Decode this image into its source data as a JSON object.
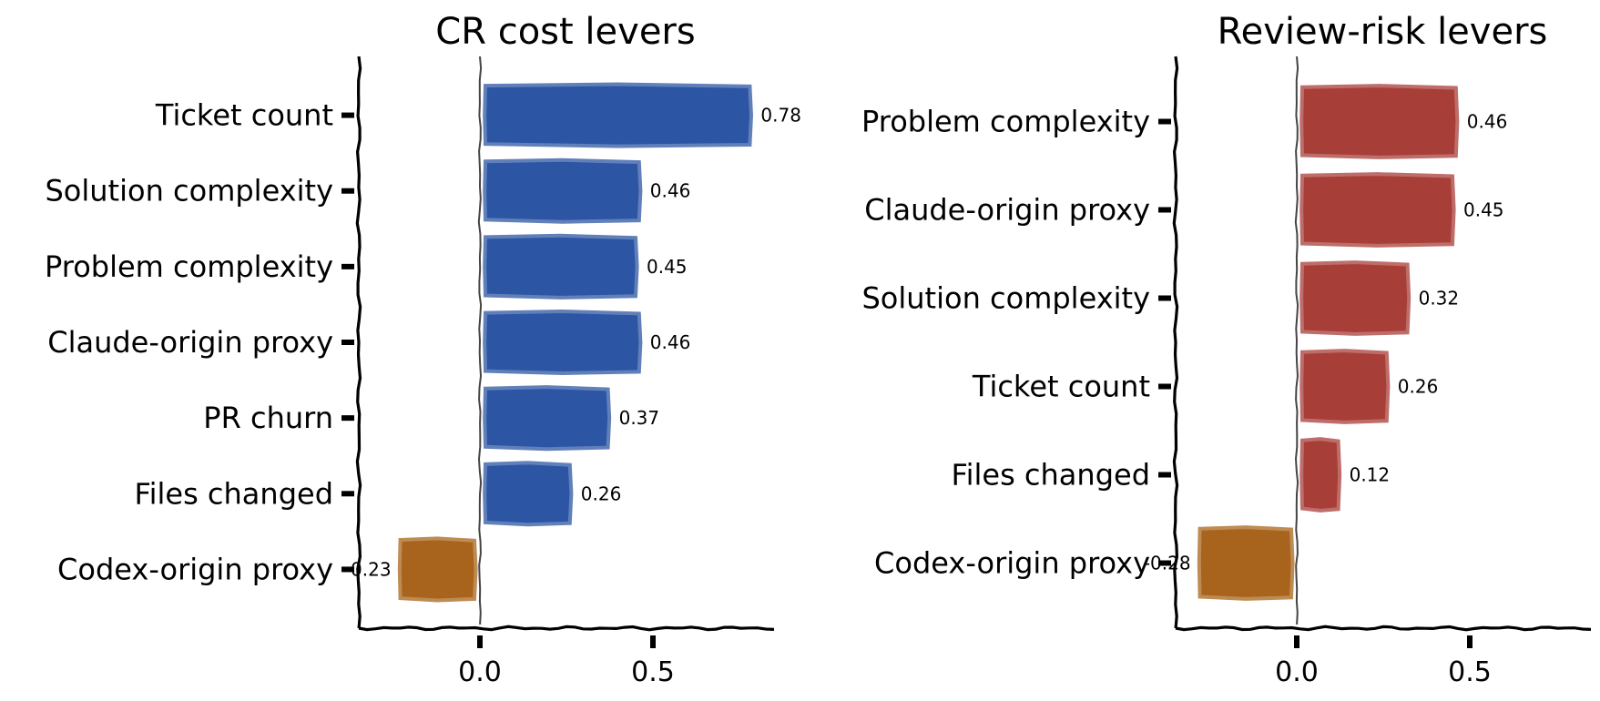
{
  "chart_data": [
    {
      "type": "bar",
      "orientation": "horizontal",
      "title": "CR cost levers",
      "categories": [
        "Ticket count",
        "Solution complexity",
        "Problem complexity",
        "Claude-origin proxy",
        "PR churn",
        "Files changed",
        "Codex-origin proxy"
      ],
      "values": [
        0.78,
        0.46,
        0.45,
        0.46,
        0.37,
        0.26,
        -0.23
      ],
      "value_labels": [
        "0.78",
        "0.46",
        "0.45",
        "0.46",
        "0.37",
        "0.26",
        "-0.23"
      ],
      "xticks": [
        0.0,
        0.5
      ],
      "xtick_labels": [
        "0.0",
        "0.5"
      ],
      "xlim": [
        -0.35,
        0.85
      ],
      "xlabel": "",
      "ylabel": "",
      "grid": false,
      "colors": {
        "positive": "#2c55a3",
        "negative": "#a8641c"
      }
    },
    {
      "type": "bar",
      "orientation": "horizontal",
      "title": "Review-risk levers",
      "categories": [
        "Problem complexity",
        "Claude-origin proxy",
        "Solution complexity",
        "Ticket count",
        "Files changed",
        "Codex-origin proxy"
      ],
      "values": [
        0.46,
        0.45,
        0.32,
        0.26,
        0.12,
        -0.28
      ],
      "value_labels": [
        "0.46",
        "0.45",
        "0.32",
        "0.26",
        "0.12",
        "-0.28"
      ],
      "xticks": [
        0.0,
        0.5
      ],
      "xtick_labels": [
        "0.0",
        "0.5"
      ],
      "xlim": [
        -0.35,
        0.85
      ],
      "xlabel": "",
      "ylabel": "",
      "grid": false,
      "colors": {
        "positive": "#a83e38",
        "negative": "#a8641c"
      }
    }
  ]
}
